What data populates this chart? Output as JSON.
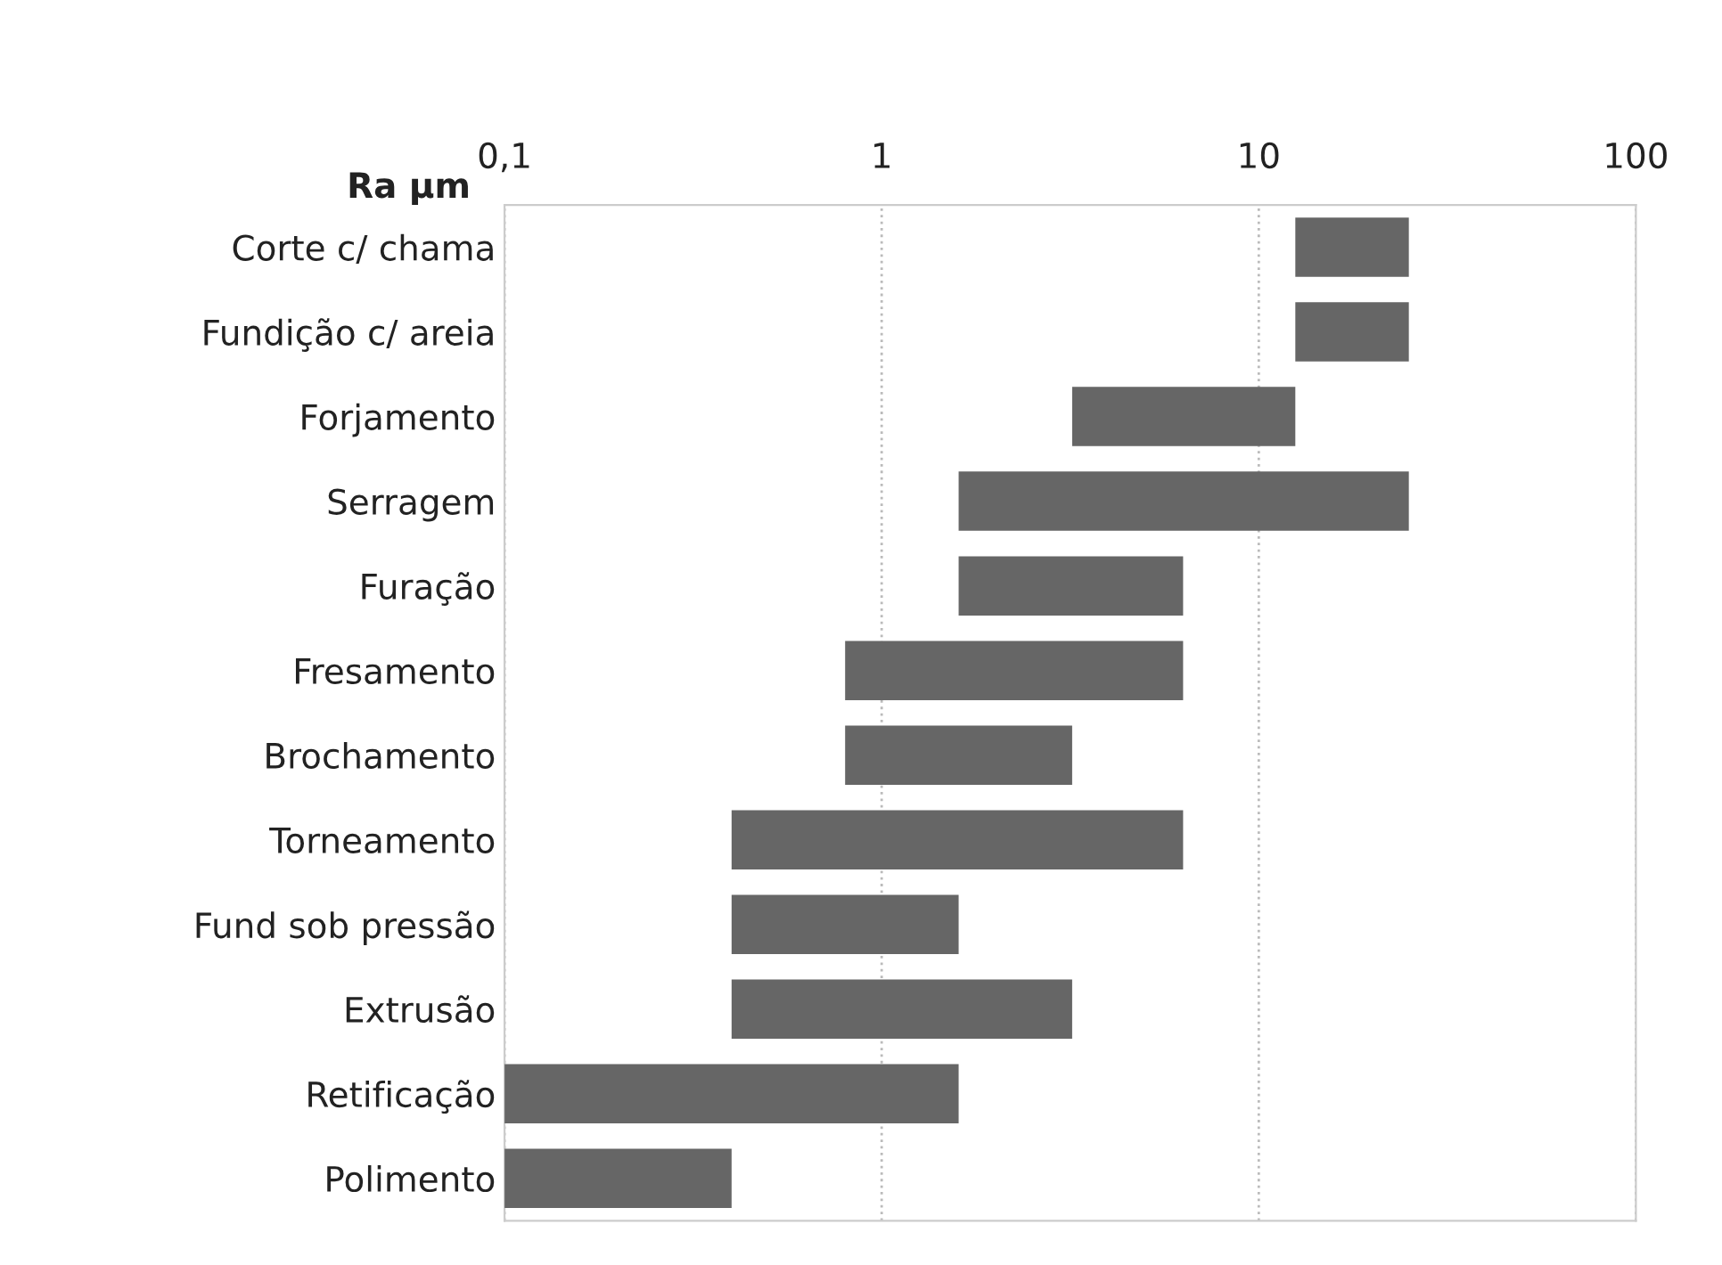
{
  "chart_data": {
    "type": "bar",
    "orientation": "horizontal",
    "xlabel": "Ra µm",
    "categories": [
      "Corte c/ chama",
      "Fundição c/ areia",
      "Forjamento",
      "Serragem",
      "Furação",
      "Fresamento",
      "Brochamento",
      "Torneamento",
      "Fund sob pressão",
      "Extrusão",
      "Retificação",
      "Polimento"
    ],
    "base": [
      12.5,
      12.5,
      3.2,
      1.6,
      1.6,
      0.8,
      0.8,
      0.4,
      0.4,
      0.4,
      0.1,
      0.1
    ],
    "values": [
      12.5,
      12.5,
      9.3,
      23.4,
      4.7,
      5.5,
      2.4,
      5.9,
      1.2,
      2.8,
      1.5,
      0.3
    ],
    "color": "#666666",
    "log": "x",
    "xlim": [
      0.1,
      100
    ],
    "xticks": [
      {
        "value": 0.1,
        "label": "0,1"
      },
      1,
      10,
      100
    ],
    "grid": "x"
  }
}
